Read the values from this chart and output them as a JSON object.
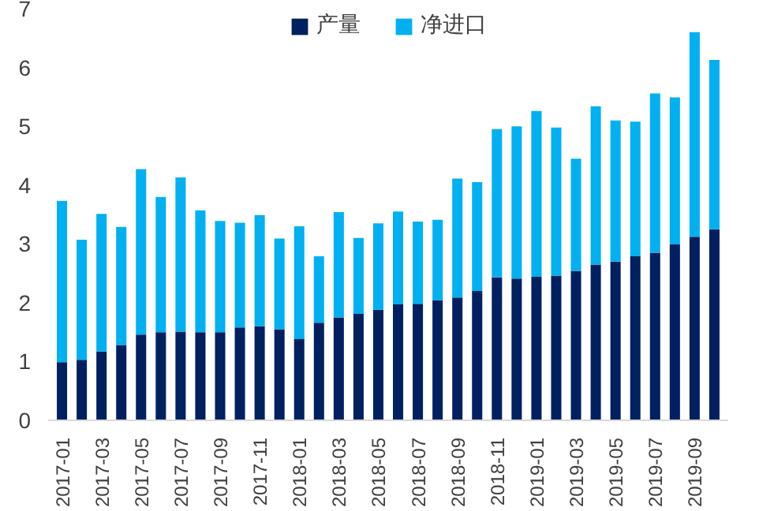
{
  "chart_data": {
    "type": "bar",
    "stacked": true,
    "legend": "top",
    "grid": false,
    "categories": [
      "2017-01",
      null,
      "2017-03",
      null,
      "2017-05",
      null,
      "2017-07",
      null,
      "2017-09",
      null,
      "2017-11",
      null,
      "2018-01",
      null,
      "2018-03",
      null,
      "2018-05",
      null,
      "2018-07",
      null,
      "2018-09",
      null,
      "2018-11",
      null,
      "2019-01",
      null,
      "2019-03",
      null,
      "2019-05",
      null,
      "2019-07",
      null,
      "2019-09",
      null
    ],
    "ylim": [
      0,
      7
    ],
    "yticks": [
      0,
      1,
      2,
      3,
      4,
      5,
      6,
      7
    ],
    "series": [
      {
        "name": "产量",
        "color": "#002060",
        "values": [
          0.99,
          1.03,
          1.17,
          1.28,
          1.46,
          1.5,
          1.51,
          1.5,
          1.5,
          1.58,
          1.6,
          1.55,
          1.38,
          1.66,
          1.75,
          1.81,
          1.88,
          1.97,
          1.98,
          2.04,
          2.09,
          2.2,
          2.43,
          2.41,
          2.44,
          2.46,
          2.54,
          2.65,
          2.7,
          2.79,
          2.85,
          2.99,
          3.12,
          3.25
        ]
      },
      {
        "name": "净进口",
        "color": "#00b0f0",
        "values": [
          2.74,
          2.04,
          2.34,
          2.01,
          2.81,
          2.3,
          2.62,
          2.07,
          1.89,
          1.78,
          1.89,
          1.54,
          1.92,
          1.13,
          1.79,
          1.29,
          1.47,
          1.58,
          1.4,
          1.37,
          2.02,
          1.85,
          2.52,
          2.59,
          2.82,
          2.52,
          1.91,
          2.69,
          2.4,
          2.29,
          2.71,
          2.5,
          3.48,
          2.88
        ]
      }
    ]
  }
}
